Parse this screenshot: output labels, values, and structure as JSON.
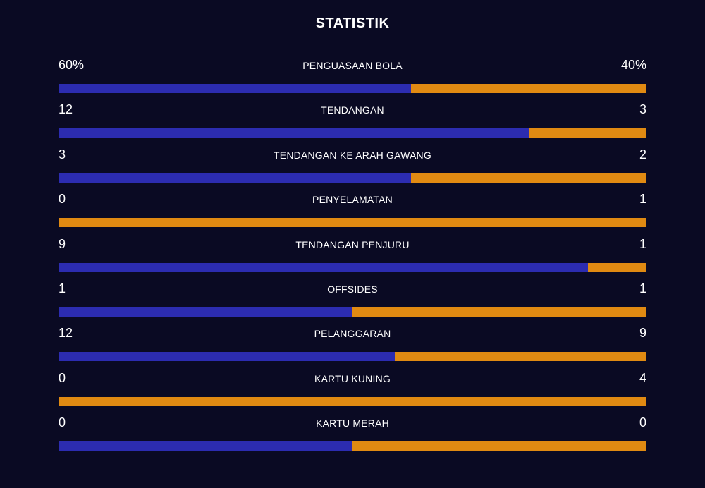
{
  "title": "STATISTIK",
  "colors": {
    "background": "#0a0a23",
    "home_bar": "#2c2cb0",
    "away_bar": "#e08a12",
    "text": "#ffffff"
  },
  "stats": [
    {
      "label": "PENGUASAAN BOLA",
      "home": "60%",
      "away": "40%",
      "home_num": 60,
      "away_num": 40
    },
    {
      "label": "TENDANGAN",
      "home": "12",
      "away": "3",
      "home_num": 12,
      "away_num": 3
    },
    {
      "label": "TENDANGAN KE ARAH GAWANG",
      "home": "3",
      "away": "2",
      "home_num": 3,
      "away_num": 2
    },
    {
      "label": "PENYELAMATAN",
      "home": "0",
      "away": "1",
      "home_num": 0,
      "away_num": 1
    },
    {
      "label": "TENDANGAN PENJURU",
      "home": "9",
      "away": "1",
      "home_num": 9,
      "away_num": 1
    },
    {
      "label": "OFFSIDES",
      "home": "1",
      "away": "1",
      "home_num": 1,
      "away_num": 1
    },
    {
      "label": "PELANGGARAN",
      "home": "12",
      "away": "9",
      "home_num": 12,
      "away_num": 9
    },
    {
      "label": "KARTU KUNING",
      "home": "0",
      "away": "4",
      "home_num": 0,
      "away_num": 4
    },
    {
      "label": "KARTU MERAH",
      "home": "0",
      "away": "0",
      "home_num": 0,
      "away_num": 0
    }
  ]
}
